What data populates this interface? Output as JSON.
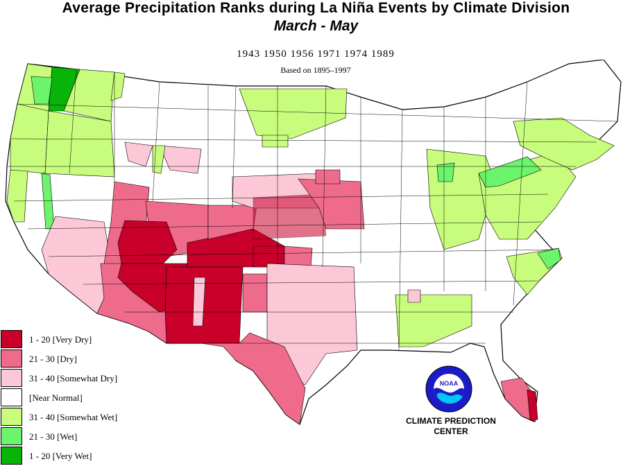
{
  "title": "Average Precipitation Ranks during La  Niña Events by Climate Division",
  "subtitle": "March  -  May",
  "years_text": "1943 1950 1956 1971 1974 1989",
  "based_on": "Based on 1895–1997",
  "legend": [
    {
      "label": "1 - 20 [Very Dry]",
      "color": "#c8002a"
    },
    {
      "label": "21 - 30 [Dry]",
      "color": "#ee6b8b"
    },
    {
      "label": "31 - 40 [Somewhat Dry]",
      "color": "#fcc8d8"
    },
    {
      "label": "[Near Normal]",
      "color": "#ffffff"
    },
    {
      "label": "31 - 40 [Somewhat Wet]",
      "color": "#c8fc7c"
    },
    {
      "label": "21 - 30 [Wet]",
      "color": "#6cf46c"
    },
    {
      "label": "1 - 20 [Very Wet]",
      "color": "#08b408"
    }
  ],
  "logo": {
    "text": "NOAA",
    "icon": "noaa-logo-icon"
  },
  "agency": {
    "line1": "CLIMATE PREDICTION",
    "line2": "CENTER"
  }
}
